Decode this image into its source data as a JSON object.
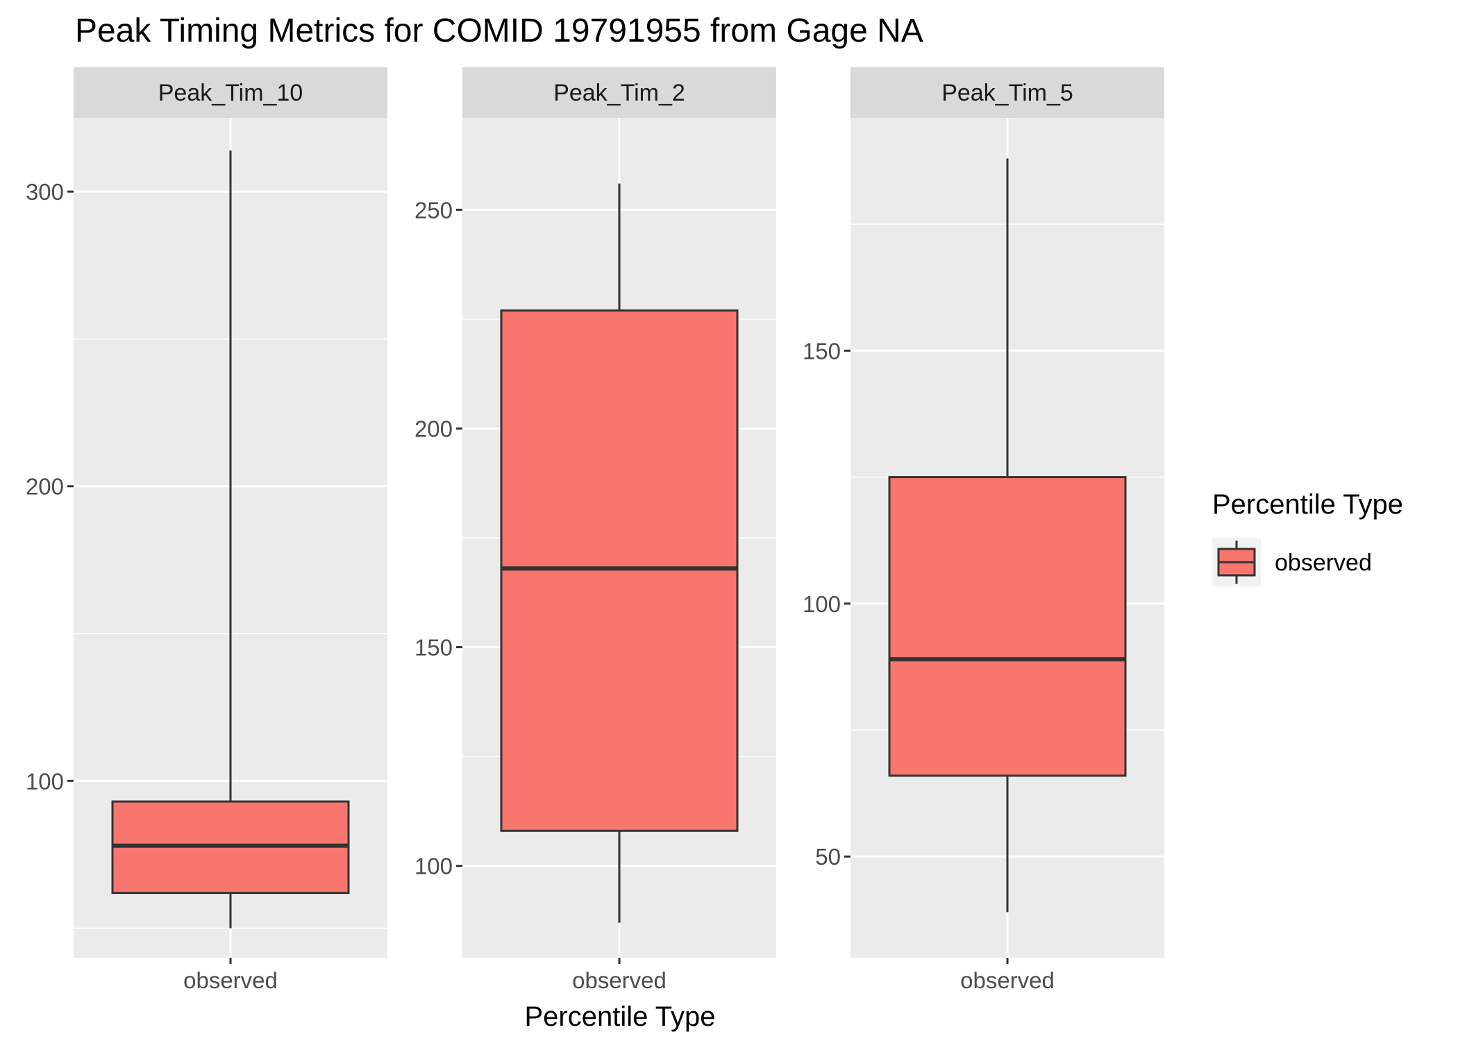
{
  "chart_data": {
    "type": "boxplot",
    "title": "Peak Timing Metrics for COMID 19791955 from Gage NA",
    "xlabel": "Percentile Type",
    "ylabel": "",
    "grid": true,
    "legend": {
      "title": "Percentile Type",
      "entries": [
        "observed"
      ],
      "placement": "right"
    },
    "colors": {
      "box_fill": "#f8766d",
      "box_line": "#333333",
      "panel_bg": "#ebebeb",
      "strip_bg": "#d9d9d9",
      "grid": "#ffffff"
    },
    "panels": [
      {
        "strip": "Peak_Tim_10",
        "category": "observed",
        "ylim": [
          40,
          325
        ],
        "yticks": [
          100,
          200,
          300
        ],
        "box": {
          "min": 50,
          "q1": 62,
          "median": 78,
          "q3": 93,
          "max": 314
        }
      },
      {
        "strip": "Peak_Tim_2",
        "category": "observed",
        "ylim": [
          79,
          271
        ],
        "yticks": [
          100,
          150,
          200,
          250
        ],
        "box": {
          "min": 87,
          "q1": 108,
          "median": 168,
          "q3": 227,
          "max": 256
        }
      },
      {
        "strip": "Peak_Tim_5",
        "category": "observed",
        "ylim": [
          30,
          196
        ],
        "yticks": [
          50,
          100,
          150
        ],
        "box": {
          "min": 39,
          "q1": 66,
          "median": 89,
          "q3": 125,
          "max": 188
        }
      }
    ]
  }
}
